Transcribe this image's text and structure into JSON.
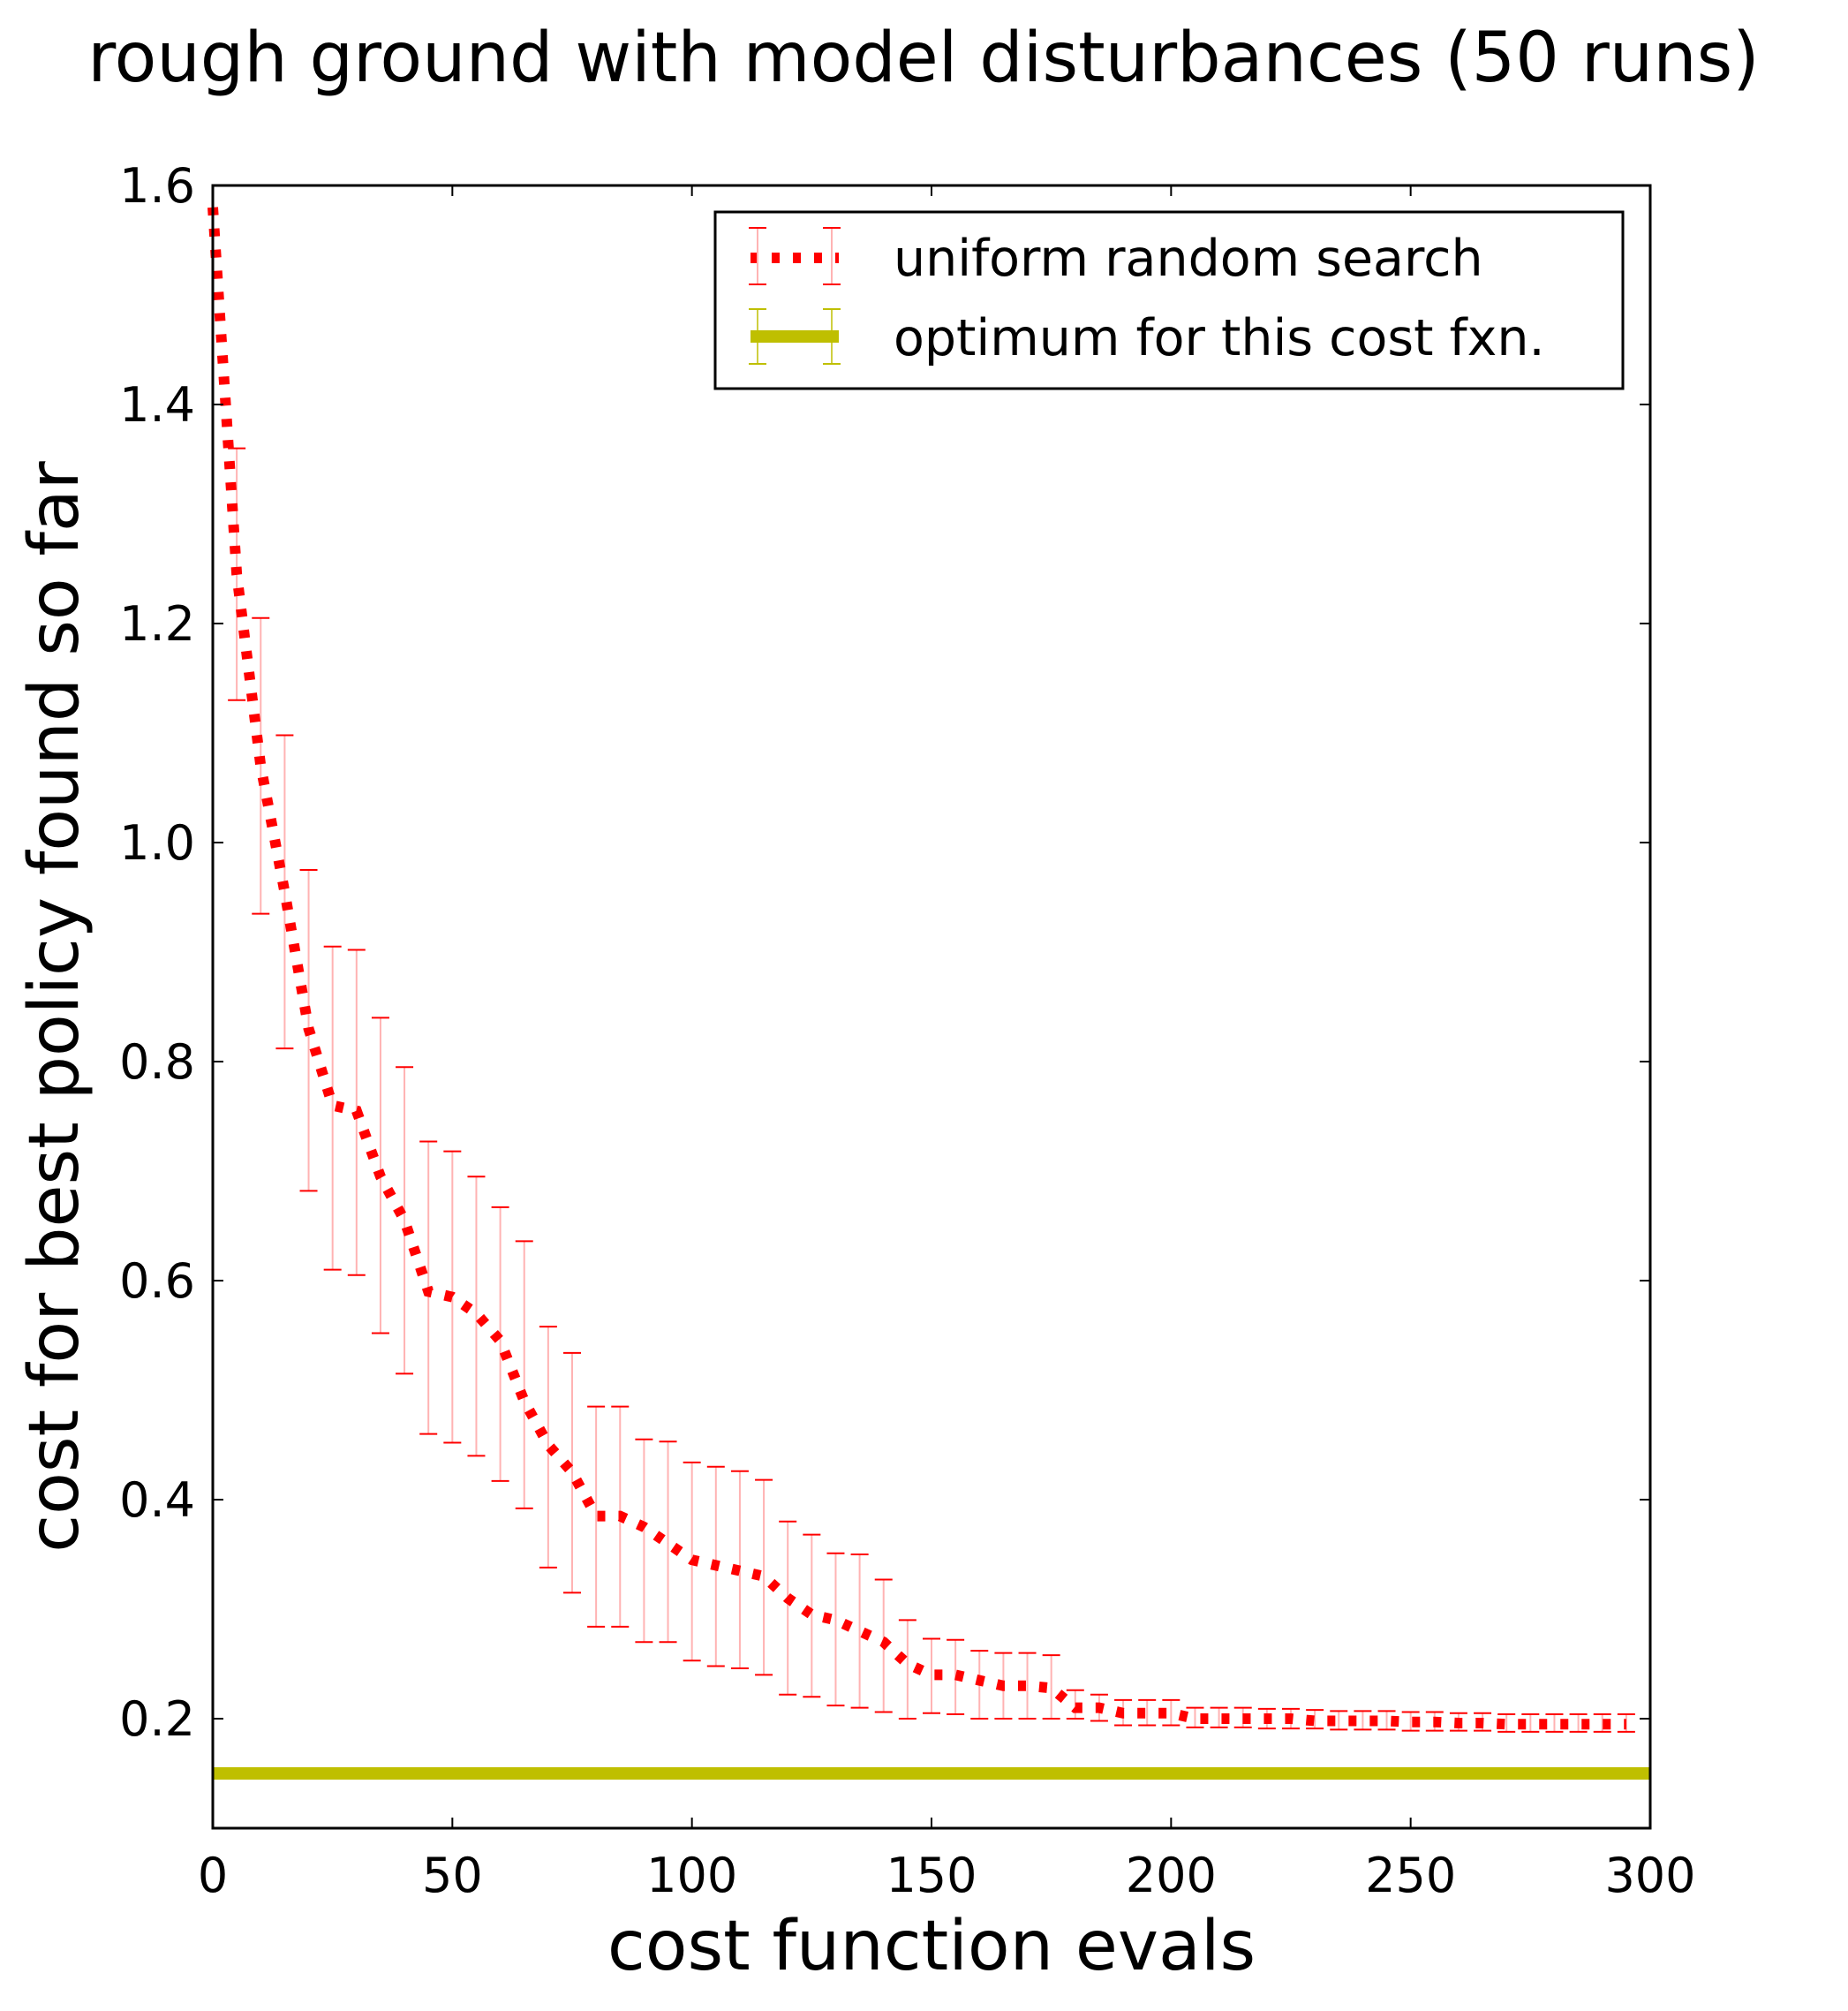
{
  "colors": {
    "random_search": "#ff0000",
    "error_bar": "#ffb3b3",
    "optimum": "#bfbf00",
    "axes": "#000000",
    "background": "#ffffff"
  },
  "chart_data": {
    "type": "line",
    "title": "rough ground with model disturbances (50 runs)",
    "xlabel": "cost function evals",
    "ylabel": "cost for best policy found so far",
    "xlim": [
      0,
      300
    ],
    "ylim": [
      0.1,
      1.6
    ],
    "xticks": [
      "0",
      "50",
      "100",
      "150",
      "200",
      "250",
      "300"
    ],
    "yticks": [
      "0.2",
      "0.4",
      "0.6",
      "0.8",
      "1.0",
      "1.2",
      "1.4",
      "1.6"
    ],
    "grid": false,
    "legend_position": "top-right",
    "series": [
      {
        "name": "uniform random search",
        "style": "dotted line with error bars",
        "x": [
          0,
          5,
          10,
          15,
          20,
          25,
          30,
          35,
          40,
          45,
          50,
          55,
          60,
          65,
          70,
          75,
          80,
          85,
          90,
          95,
          100,
          105,
          110,
          115,
          120,
          125,
          130,
          135,
          140,
          145,
          150,
          155,
          160,
          165,
          170,
          175,
          180,
          185,
          190,
          195,
          200,
          205,
          210,
          215,
          220,
          225,
          230,
          235,
          240,
          245,
          250,
          255,
          260,
          265,
          270,
          275,
          280,
          285,
          290,
          295
        ],
        "y": [
          1.58,
          1.245,
          1.07,
          0.955,
          0.83,
          0.76,
          0.755,
          0.695,
          0.655,
          0.59,
          0.585,
          0.57,
          0.545,
          0.49,
          0.45,
          0.425,
          0.385,
          0.385,
          0.375,
          0.36,
          0.345,
          0.34,
          0.335,
          0.33,
          0.31,
          0.295,
          0.29,
          0.28,
          0.27,
          0.25,
          0.24,
          0.24,
          0.235,
          0.23,
          0.23,
          0.228,
          0.21,
          0.21,
          0.205,
          0.205,
          0.205,
          0.2,
          0.2,
          0.2,
          0.2,
          0.2,
          0.198,
          0.198,
          0.198,
          0.198,
          0.197,
          0.197,
          0.196,
          0.196,
          0.195,
          0.195,
          0.195,
          0.195,
          0.195,
          0.195
        ],
        "err_low": [
          1.58,
          1.13,
          0.935,
          0.812,
          0.682,
          0.61,
          0.605,
          0.552,
          0.515,
          0.46,
          0.452,
          0.44,
          0.417,
          0.392,
          0.338,
          0.315,
          0.284,
          0.284,
          0.27,
          0.27,
          0.253,
          0.248,
          0.246,
          0.24,
          0.222,
          0.22,
          0.212,
          0.21,
          0.206,
          0.2,
          0.205,
          0.204,
          0.2,
          0.2,
          0.2,
          0.2,
          0.2,
          0.198,
          0.194,
          0.194,
          0.194,
          0.192,
          0.192,
          0.192,
          0.191,
          0.191,
          0.191,
          0.19,
          0.19,
          0.19,
          0.189,
          0.189,
          0.189,
          0.189,
          0.188,
          0.188,
          0.188,
          0.188,
          0.188,
          0.188
        ],
        "err_high": [
          1.58,
          1.36,
          1.205,
          1.098,
          0.975,
          0.905,
          0.902,
          0.84,
          0.795,
          0.727,
          0.718,
          0.695,
          0.667,
          0.636,
          0.558,
          0.534,
          0.485,
          0.485,
          0.455,
          0.453,
          0.434,
          0.43,
          0.426,
          0.418,
          0.38,
          0.368,
          0.351,
          0.35,
          0.327,
          0.29,
          0.273,
          0.272,
          0.262,
          0.26,
          0.26,
          0.258,
          0.226,
          0.222,
          0.217,
          0.217,
          0.217,
          0.21,
          0.21,
          0.21,
          0.209,
          0.209,
          0.208,
          0.207,
          0.207,
          0.207,
          0.206,
          0.206,
          0.205,
          0.205,
          0.204,
          0.204,
          0.204,
          0.204,
          0.204,
          0.204
        ]
      },
      {
        "name": "optimum for this cost fxn.",
        "style": "solid horizontal line",
        "y": 0.15
      }
    ]
  }
}
